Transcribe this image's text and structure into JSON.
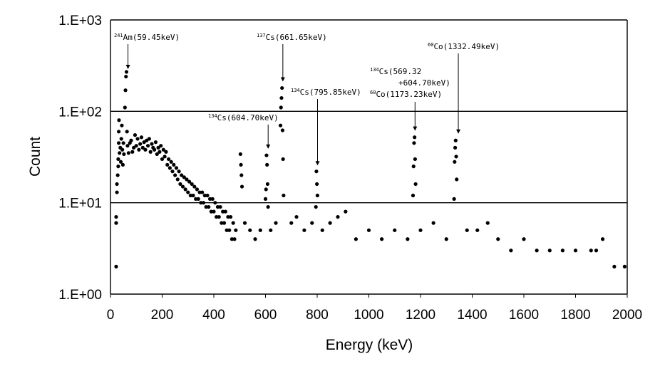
{
  "chart_data": {
    "type": "scatter",
    "title": "",
    "xlabel": "Energy (keV)",
    "ylabel": "Count",
    "x_range": [
      0,
      2000
    ],
    "y_range": [
      1,
      1000
    ],
    "y_scale": "log",
    "grid": "horizontal major lines",
    "legend": "none",
    "x_ticks": [
      "0",
      "200",
      "400",
      "600",
      "800",
      "1000",
      "1200",
      "1400",
      "1600",
      "1800",
      "2000"
    ],
    "y_ticks": [
      "1.E+00",
      "1.E+01",
      "1.E+02",
      "1.E+03"
    ],
    "marker_color": "#000000",
    "series": [
      {
        "points": [
          [
            22,
            2
          ],
          [
            22,
            6
          ],
          [
            22,
            7
          ],
          [
            25,
            13
          ],
          [
            25,
            16
          ],
          [
            28,
            20
          ],
          [
            30,
            25
          ],
          [
            30,
            30
          ],
          [
            32,
            45
          ],
          [
            32,
            60
          ],
          [
            33,
            80
          ],
          [
            35,
            35
          ],
          [
            38,
            40
          ],
          [
            40,
            28
          ],
          [
            42,
            50
          ],
          [
            44,
            70
          ],
          [
            46,
            38
          ],
          [
            48,
            26
          ],
          [
            50,
            45
          ],
          [
            52,
            34
          ],
          [
            56,
            110
          ],
          [
            58,
            170
          ],
          [
            60,
            240
          ],
          [
            62,
            270
          ],
          [
            64,
            60
          ],
          [
            66,
            42
          ],
          [
            70,
            35
          ],
          [
            75,
            45
          ],
          [
            80,
            48
          ],
          [
            85,
            36
          ],
          [
            90,
            40
          ],
          [
            95,
            55
          ],
          [
            100,
            42
          ],
          [
            105,
            50
          ],
          [
            110,
            38
          ],
          [
            115,
            44
          ],
          [
            120,
            52
          ],
          [
            125,
            40
          ],
          [
            130,
            46
          ],
          [
            135,
            38
          ],
          [
            140,
            48
          ],
          [
            145,
            42
          ],
          [
            150,
            50
          ],
          [
            155,
            36
          ],
          [
            160,
            44
          ],
          [
            165,
            40
          ],
          [
            170,
            38
          ],
          [
            175,
            46
          ],
          [
            180,
            34
          ],
          [
            185,
            40
          ],
          [
            190,
            36
          ],
          [
            195,
            42
          ],
          [
            200,
            30
          ],
          [
            205,
            38
          ],
          [
            210,
            32
          ],
          [
            215,
            36
          ],
          [
            220,
            26
          ],
          [
            225,
            30
          ],
          [
            230,
            24
          ],
          [
            235,
            28
          ],
          [
            240,
            22
          ],
          [
            245,
            26
          ],
          [
            250,
            20
          ],
          [
            255,
            24
          ],
          [
            260,
            18
          ],
          [
            265,
            22
          ],
          [
            270,
            16
          ],
          [
            275,
            20
          ],
          [
            280,
            15
          ],
          [
            285,
            19
          ],
          [
            290,
            14
          ],
          [
            295,
            18
          ],
          [
            300,
            13
          ],
          [
            305,
            17
          ],
          [
            310,
            12
          ],
          [
            315,
            16
          ],
          [
            320,
            12
          ],
          [
            325,
            15
          ],
          [
            330,
            11
          ],
          [
            335,
            14
          ],
          [
            340,
            11
          ],
          [
            345,
            13
          ],
          [
            350,
            10
          ],
          [
            355,
            13
          ],
          [
            360,
            10
          ],
          [
            365,
            12
          ],
          [
            370,
            9
          ],
          [
            375,
            12
          ],
          [
            380,
            9
          ],
          [
            385,
            11
          ],
          [
            390,
            8
          ],
          [
            395,
            11
          ],
          [
            400,
            8
          ],
          [
            405,
            10
          ],
          [
            410,
            7
          ],
          [
            415,
            9
          ],
          [
            420,
            7
          ],
          [
            425,
            9
          ],
          [
            430,
            6
          ],
          [
            435,
            8
          ],
          [
            440,
            6
          ],
          [
            445,
            8
          ],
          [
            450,
            5
          ],
          [
            455,
            7
          ],
          [
            460,
            5
          ],
          [
            465,
            7
          ],
          [
            470,
            4
          ],
          [
            475,
            6
          ],
          [
            480,
            4
          ],
          [
            485,
            5
          ],
          [
            503,
            34
          ],
          [
            505,
            26
          ],
          [
            507,
            20
          ],
          [
            509,
            15
          ],
          [
            520,
            6
          ],
          [
            540,
            5
          ],
          [
            560,
            4
          ],
          [
            580,
            5
          ],
          [
            600,
            11
          ],
          [
            602,
            14
          ],
          [
            604,
            33
          ],
          [
            606,
            26
          ],
          [
            608,
            16
          ],
          [
            610,
            9
          ],
          [
            620,
            5
          ],
          [
            640,
            6
          ],
          [
            658,
            70
          ],
          [
            660,
            110
          ],
          [
            662,
            140
          ],
          [
            664,
            180
          ],
          [
            666,
            62
          ],
          [
            668,
            30
          ],
          [
            670,
            12
          ],
          [
            700,
            6
          ],
          [
            720,
            7
          ],
          [
            750,
            5
          ],
          [
            780,
            6
          ],
          [
            795,
            9
          ],
          [
            797,
            22
          ],
          [
            799,
            16
          ],
          [
            801,
            12
          ],
          [
            820,
            5
          ],
          [
            850,
            6
          ],
          [
            880,
            7
          ],
          [
            910,
            8
          ],
          [
            950,
            4
          ],
          [
            1000,
            5
          ],
          [
            1050,
            4
          ],
          [
            1100,
            5
          ],
          [
            1150,
            4
          ],
          [
            1171,
            12
          ],
          [
            1173,
            25
          ],
          [
            1175,
            45
          ],
          [
            1177,
            52
          ],
          [
            1179,
            30
          ],
          [
            1181,
            16
          ],
          [
            1200,
            5
          ],
          [
            1250,
            6
          ],
          [
            1300,
            4
          ],
          [
            1330,
            11
          ],
          [
            1332,
            28
          ],
          [
            1334,
            40
          ],
          [
            1336,
            48
          ],
          [
            1338,
            32
          ],
          [
            1340,
            18
          ],
          [
            1380,
            5
          ],
          [
            1420,
            5
          ],
          [
            1460,
            6
          ],
          [
            1500,
            4
          ],
          [
            1550,
            3
          ],
          [
            1600,
            4
          ],
          [
            1650,
            3
          ],
          [
            1700,
            3
          ],
          [
            1750,
            3
          ],
          [
            1800,
            3
          ],
          [
            1860,
            3
          ],
          [
            1880,
            3
          ],
          [
            1905,
            4
          ],
          [
            1950,
            2
          ],
          [
            1990,
            2
          ]
        ]
      }
    ],
    "annotations": [
      {
        "sup": "241",
        "text": "Am(59.45keV)",
        "energy": 59.45,
        "arrow_to": 270
      },
      {
        "sup": "137",
        "text": "Cs(661.65keV)",
        "energy": 661.65,
        "arrow_to": 190
      },
      {
        "sup": "134",
        "text": "Cs(795.85keV)",
        "energy": 795.85,
        "arrow_to": 23
      },
      {
        "sup": "134",
        "text": "Cs(604.70keV)",
        "energy": 604.7,
        "arrow_to": 35
      },
      {
        "sup": "134",
        "text": "Cs(569.32",
        "text2": "+604.70keV)",
        "sup3": "60",
        "text3": "Co(1173.23keV)",
        "energy": 1173.23,
        "arrow_to": 55
      },
      {
        "sup": "60",
        "text": "Co(1332.49keV)",
        "energy": 1332.49,
        "arrow_to": 52
      }
    ]
  }
}
